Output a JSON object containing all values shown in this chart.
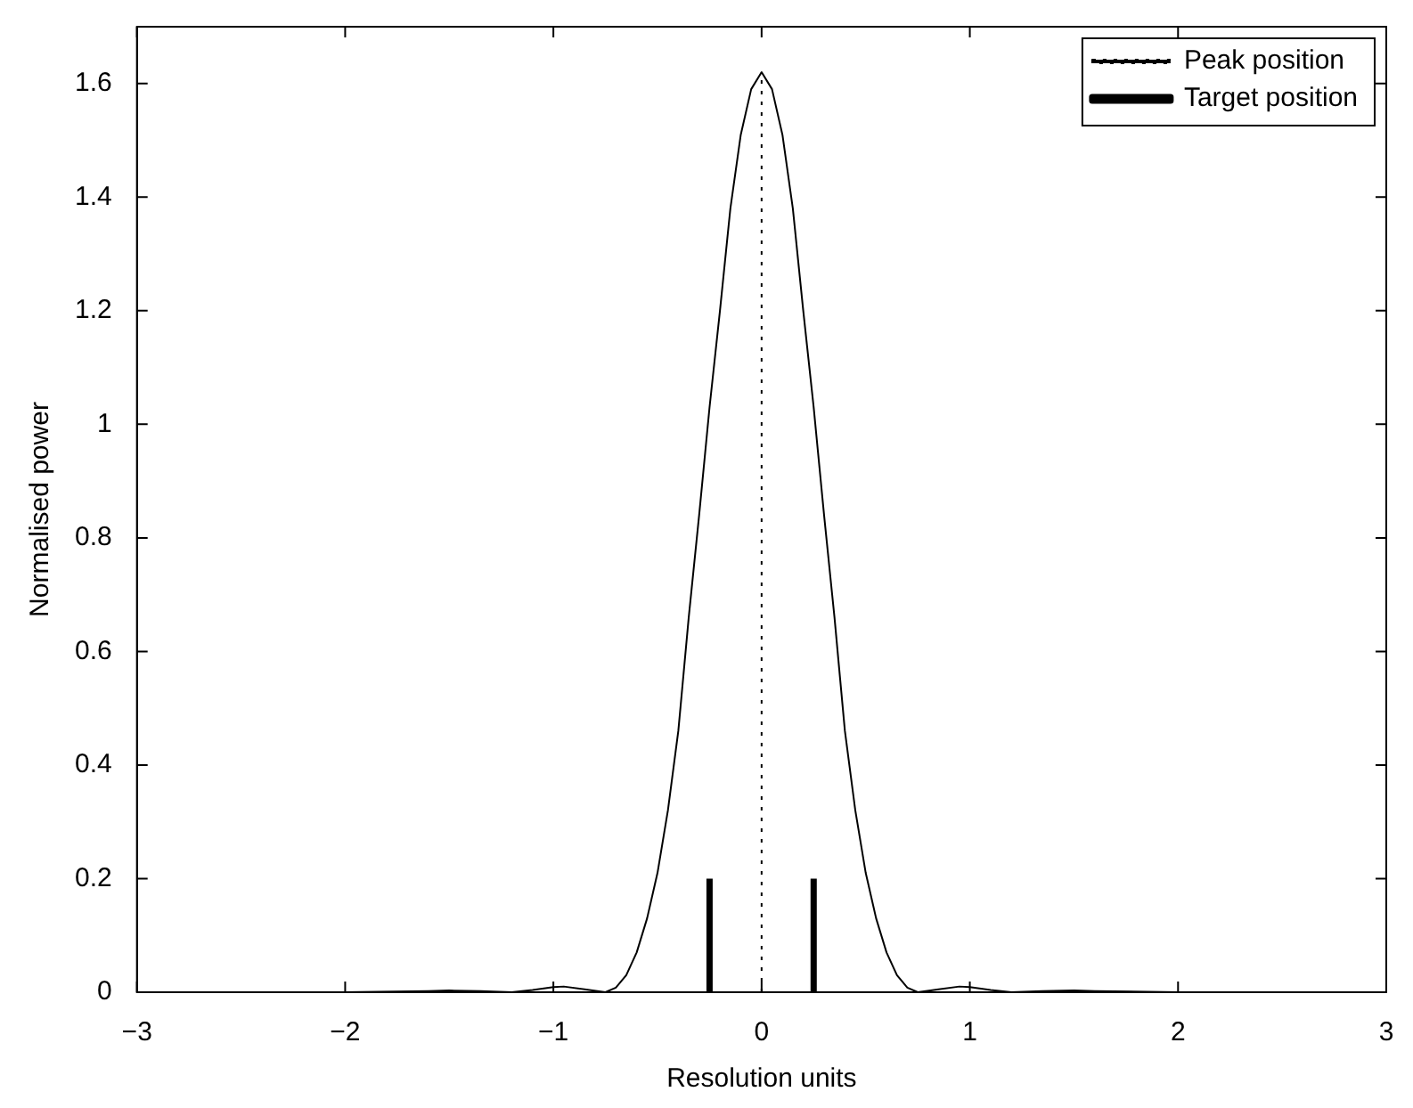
{
  "chart_data": {
    "type": "line",
    "xlabel": "Resolution units",
    "ylabel": "Normalised power",
    "xlim": [
      -3,
      3
    ],
    "ylim": [
      0,
      1.7
    ],
    "xticks": [
      -3,
      -2,
      -1,
      0,
      1,
      2,
      3
    ],
    "yticks": [
      0,
      0.2,
      0.4,
      0.6,
      0.8,
      1,
      1.2,
      1.4,
      1.6
    ],
    "grid": false,
    "legend": "top right",
    "marker": "none",
    "series": [
      {
        "color": "#000000",
        "line_style": "solid",
        "x": [
          -3,
          -2,
          -1.6,
          -1.5,
          -1.35,
          -1.2,
          -1.1,
          -1,
          -0.95,
          -0.85,
          -0.75,
          -0.7,
          -0.65,
          -0.6,
          -0.55,
          -0.5,
          -0.45,
          -0.4,
          -0.35,
          -0.3,
          -0.25,
          -0.2,
          -0.15,
          -0.1,
          -0.05,
          0,
          0.05,
          0.1,
          0.15,
          0.2,
          0.25,
          0.3,
          0.35,
          0.4,
          0.45,
          0.5,
          0.55,
          0.6,
          0.65,
          0.7,
          0.75,
          0.85,
          0.95,
          1,
          1.1,
          1.2,
          1.35,
          1.5,
          1.6,
          2,
          3
        ],
        "values": [
          0,
          0,
          0.002,
          0.003,
          0.002,
          0,
          0.004,
          0.009,
          0.01,
          0.005,
          0,
          0.008,
          0.03,
          0.07,
          0.13,
          0.21,
          0.32,
          0.46,
          0.66,
          0.84,
          1.03,
          1.2,
          1.38,
          1.51,
          1.59,
          1.62,
          1.59,
          1.51,
          1.38,
          1.2,
          1.03,
          0.84,
          0.66,
          0.46,
          0.32,
          0.21,
          0.13,
          0.07,
          0.03,
          0.008,
          0,
          0.005,
          0.01,
          0.009,
          0.004,
          0,
          0.002,
          0.003,
          0.002,
          0,
          0
        ]
      },
      {
        "name": "Peak position",
        "color": "#000000",
        "line_style": "dotted",
        "x": [
          0,
          0,
          0
        ],
        "values": [
          0,
          0.8,
          1.62
        ]
      },
      {
        "name": "Target position",
        "color": "#000000",
        "line_style": "solid",
        "x": [
          -0.25,
          -0.25,
          0,
          0.25,
          0.25
        ],
        "values": [
          0,
          0.2,
          null,
          0,
          0.2
        ]
      }
    ]
  }
}
